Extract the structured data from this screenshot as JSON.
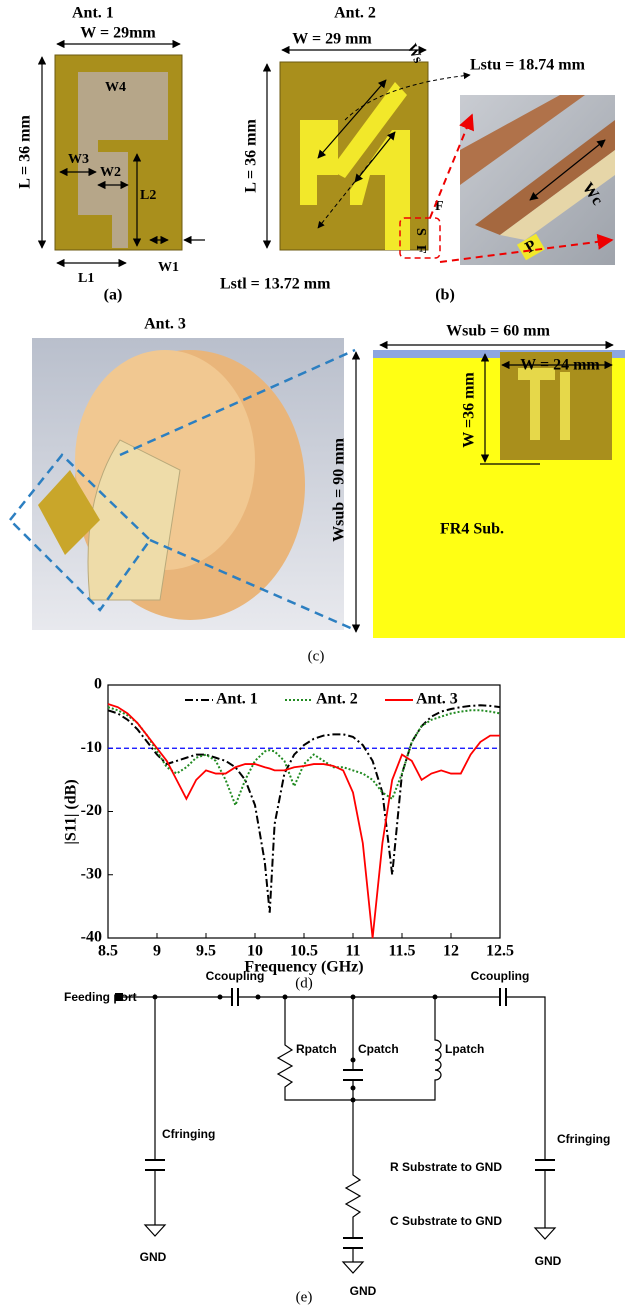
{
  "panel_a": {
    "title": "Ant. 1",
    "width": "W = 29mm",
    "length": "L = 36 mm",
    "w4": "W4",
    "w3": "W3",
    "w2": "W2",
    "l2": "L2",
    "l1": "L1",
    "w1": "W1",
    "caption": "(a)"
  },
  "panel_b": {
    "title": "Ant. 2",
    "width": "W = 29 mm",
    "length": "L = 36 mm",
    "ws": "Ws",
    "lstu": "Lstu = 18.74 mm",
    "lstl": "Lstl = 13.72 mm",
    "f_top": "F",
    "s": "S",
    "f_side": "F",
    "wc": "Wc",
    "p": "P",
    "caption": "(b)"
  },
  "panel_c": {
    "title": "Ant. 3",
    "wsub_width": "Wsub = 60 mm",
    "w": "W = 24 mm",
    "w_length": "W =36 mm",
    "wsub_length": "Wsub = 90 mm",
    "substrate": "FR4 Sub.",
    "caption": "(c)"
  },
  "chart_data": {
    "type": "line",
    "xlabel": "Frequency (GHz)",
    "ylabel": "|S11| (dB)",
    "caption": "(d)",
    "x": [
      8.5,
      8.6,
      8.7,
      8.8,
      8.9,
      9.0,
      9.1,
      9.2,
      9.3,
      9.4,
      9.5,
      9.6,
      9.7,
      9.8,
      9.9,
      10.0,
      10.1,
      10.15,
      10.2,
      10.3,
      10.4,
      10.5,
      10.6,
      10.7,
      10.8,
      10.9,
      11.0,
      11.1,
      11.2,
      11.3,
      11.4,
      11.5,
      11.6,
      11.7,
      11.8,
      11.9,
      12.0,
      12.1,
      12.2,
      12.3,
      12.4,
      12.5
    ],
    "series": [
      {
        "name": "Ant. 1",
        "color": "#000000",
        "line_style": "dashdot",
        "values": [
          -4,
          -4.5,
          -5.5,
          -7,
          -9,
          -11,
          -12.5,
          -12,
          -11.5,
          -11,
          -11,
          -11.5,
          -12,
          -13,
          -15,
          -19,
          -28,
          -36,
          -22,
          -14,
          -11,
          -9.5,
          -8.5,
          -8,
          -7.8,
          -7.8,
          -8.2,
          -9.5,
          -12,
          -17,
          -30,
          -14,
          -9,
          -6.5,
          -5,
          -4.2,
          -3.8,
          -3.5,
          -3.3,
          -3.2,
          -3.3,
          -3.5
        ]
      },
      {
        "name": "Ant. 2",
        "color": "#228b22",
        "line_style": "dotted",
        "values": [
          -3.5,
          -4,
          -4.8,
          -6,
          -8,
          -10.5,
          -13,
          -14,
          -13,
          -11.5,
          -11,
          -12,
          -15,
          -19,
          -15,
          -12,
          -10.5,
          -10.3,
          -10.5,
          -12,
          -16,
          -12.5,
          -11,
          -12,
          -13,
          -13,
          -13.5,
          -14,
          -15,
          -17,
          -18,
          -14,
          -9,
          -6.5,
          -5.5,
          -5,
          -4.5,
          -4.2,
          -4,
          -4,
          -4.2,
          -4.5
        ]
      },
      {
        "name": "Ant. 3",
        "color": "#ff0000",
        "line_style": "solid",
        "values": [
          -3,
          -3.5,
          -4.5,
          -6,
          -8,
          -10,
          -12,
          -15,
          -18,
          -15,
          -13.5,
          -14,
          -14,
          -13,
          -12.5,
          -12.5,
          -13,
          -13.2,
          -13.5,
          -13.5,
          -13,
          -12.8,
          -12.5,
          -12.5,
          -12.8,
          -13.5,
          -17,
          -25,
          -40,
          -25,
          -15,
          -11,
          -12,
          -15,
          -14,
          -13.5,
          -14,
          -14,
          -11,
          -9,
          -8,
          -8
        ]
      }
    ],
    "reference_line": {
      "value": -10,
      "color": "#0000ff"
    },
    "xlim": [
      8.5,
      12.5
    ],
    "xticks": [
      8.5,
      9,
      9.5,
      10,
      10.5,
      11,
      11.5,
      12,
      12.5
    ],
    "ylim": [
      -40,
      0
    ],
    "yticks": [
      0,
      -10,
      -20,
      -30,
      -40
    ]
  },
  "panel_e": {
    "feeding_port": "Feeding port",
    "ccoupling_left": "Ccoupling",
    "ccoupling_right": "Ccoupling",
    "rpatch": "Rpatch",
    "cpatch": "Cpatch",
    "lpatch": "Lpatch",
    "cfringing_left": "Cfringing",
    "cfringing_right": "Cfringing",
    "r_substrate": "R Substrate to GND",
    "c_substrate": "C Substrate to GND",
    "gnd_left": "GND",
    "gnd_center": "GND",
    "gnd_right": "GND",
    "caption": "(e)"
  }
}
